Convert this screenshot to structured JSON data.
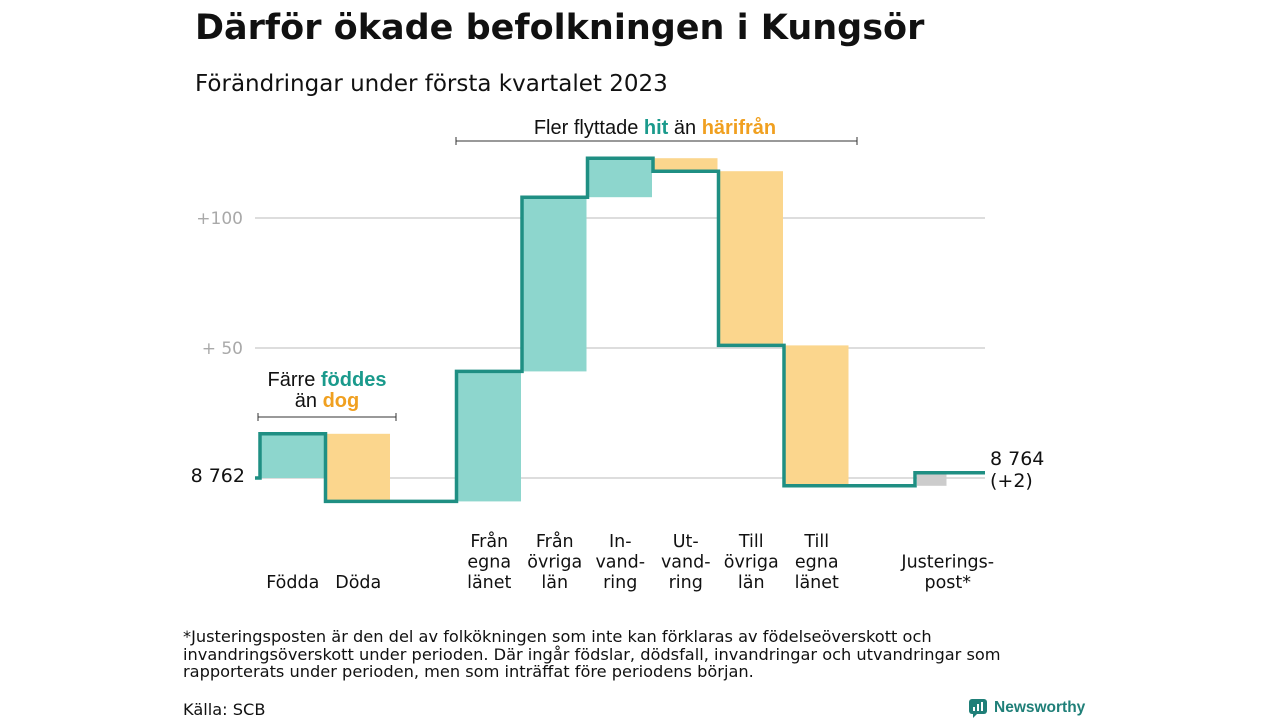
{
  "title": "Därför ökade befolkningen i Kungsör",
  "subtitle": "Förändringar under första kvartalet 2023",
  "colors": {
    "in": "#8dd6cd",
    "out": "#fbd68d",
    "adjust": "#cccccc",
    "line": "#1f8f83",
    "accent_in": "#1a9a8c",
    "accent_out": "#f0a020",
    "grid": "#dddddd",
    "tick": "#a9a9a9"
  },
  "chart_data": {
    "type": "waterfall",
    "start_value": 8762,
    "start_label": "8 762",
    "end_label": "8 764",
    "end_change_label": "(+2)",
    "yticks": [
      {
        "value": 100,
        "label": "+100"
      },
      {
        "value": 50,
        "label": "+ 50"
      }
    ],
    "steps": [
      {
        "label": [
          "Födda"
        ],
        "change": 17,
        "kind": "in"
      },
      {
        "label": [
          "Döda"
        ],
        "change": -26,
        "kind": "out"
      },
      {
        "label": [],
        "change": 0,
        "kind": "gap"
      },
      {
        "label": [
          "Från",
          "egna",
          "länet"
        ],
        "change": 50,
        "kind": "in"
      },
      {
        "label": [
          "Från",
          "övriga",
          "län"
        ],
        "change": 67,
        "kind": "in"
      },
      {
        "label": [
          "In-",
          "vand-",
          "ring"
        ],
        "change": 15,
        "kind": "in"
      },
      {
        "label": [
          "Ut-",
          "vand-",
          "ring"
        ],
        "change": -5,
        "kind": "out"
      },
      {
        "label": [
          "Till",
          "övriga",
          "län"
        ],
        "change": -67,
        "kind": "out"
      },
      {
        "label": [
          "Till",
          "egna",
          "länet"
        ],
        "change": -54,
        "kind": "out"
      },
      {
        "label": [],
        "change": 0,
        "kind": "gap"
      },
      {
        "label": [
          "Justerings-",
          "post*"
        ],
        "change": 5,
        "kind": "adjust"
      }
    ],
    "annotations": [
      {
        "parts": [
          {
            "text": "Färre ",
            "style": "plain"
          },
          {
            "text": "föddes",
            "style": "in"
          }
        ],
        "line2": [
          {
            "text": "än ",
            "style": "plain"
          },
          {
            "text": "dog",
            "style": "out"
          }
        ]
      },
      {
        "parts": [
          {
            "text": "Fler flyttade ",
            "style": "plain"
          },
          {
            "text": "hit",
            "style": "in"
          },
          {
            "text": " än ",
            "style": "plain"
          },
          {
            "text": "härifrån",
            "style": "out"
          }
        ]
      }
    ]
  },
  "footnote": "*Justeringsposten är den del av folkökningen som inte kan förklaras av födelseöverskott och invandringsöverskott under perioden. Där ingår födslar, dödsfall, invandringar och utvandringar som rapporterats under perioden, men som inträffat före periodens början.",
  "source": "Källa: SCB",
  "brand": "Newsworthy"
}
